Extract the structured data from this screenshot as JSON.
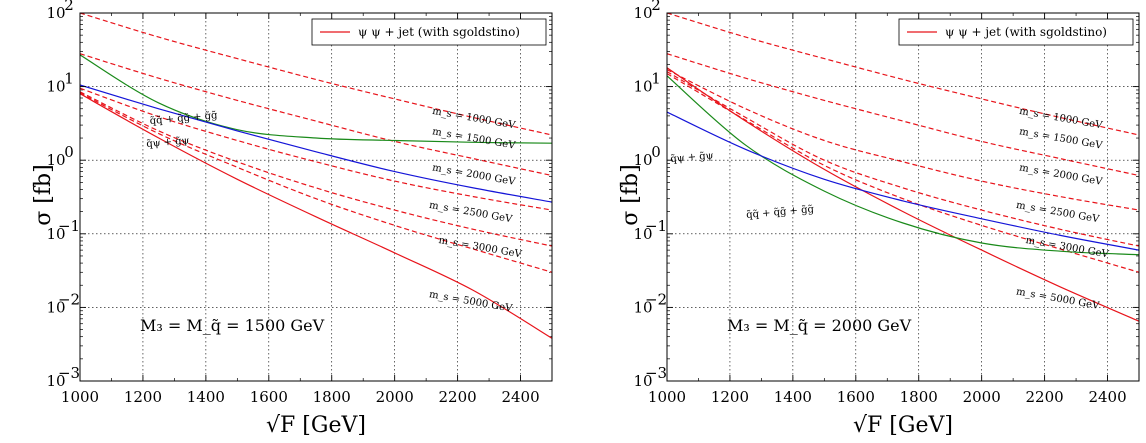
{
  "chart_data": [
    {
      "type": "line",
      "xlabel": "√F [GeV]",
      "ylabel": "σ [fb]",
      "xlim": [
        1000,
        2500
      ],
      "ylim": [
        0.001,
        100
      ],
      "yscale": "log",
      "x_ticks": [
        "1000",
        "1200",
        "1400",
        "1600",
        "1800",
        "2000",
        "2200",
        "2400"
      ],
      "y_ticks": [
        {
          "value": 0.001,
          "base": "10",
          "exp": "−3"
        },
        {
          "value": 0.01,
          "base": "10",
          "exp": "−2"
        },
        {
          "value": 0.1,
          "base": "10",
          "exp": "−1"
        },
        {
          "value": 1,
          "base": "10",
          "exp": "0"
        },
        {
          "value": 10,
          "base": "10",
          "exp": "1"
        },
        {
          "value": 100,
          "base": "10",
          "exp": "2"
        }
      ],
      "grid": true,
      "legend": {
        "placement": "top-right",
        "label": "ψ ψ + jet (with sgoldstino)"
      },
      "plot_label": "M₃ = M_q̃ = 1500 GeV",
      "x": [
        1000,
        1250,
        1500,
        1750,
        2000,
        2250,
        2500
      ],
      "series": [
        {
          "name": "m_s = 1000 GeV",
          "style": "dashed",
          "color": "#e8141b",
          "values": [
            100,
            47,
            24,
            12.5,
            6.8,
            3.8,
            2.2
          ],
          "label_at": [
            2250,
            3.4
          ],
          "label": "m_s = 1000 GeV"
        },
        {
          "name": "m_s = 1500 GeV",
          "style": "dashed",
          "color": "#e8141b",
          "values": [
            28,
            13,
            6.5,
            3.4,
            1.8,
            1.05,
            0.62
          ],
          "label_at": [
            2250,
            1.8
          ],
          "label": "m_s = 1500 GeV"
        },
        {
          "name": "m_s = 2000 GeV",
          "style": "dashed",
          "color": "#e8141b",
          "values": [
            9.5,
            3.9,
            1.85,
            0.95,
            0.52,
            0.32,
            0.21
          ],
          "label_at": [
            2250,
            0.58
          ],
          "label": "m_s = 2000 GeV"
        },
        {
          "name": "m_s = 2500 GeV",
          "style": "dashed",
          "color": "#e8141b",
          "values": [
            8.5,
            2.5,
            0.95,
            0.42,
            0.21,
            0.115,
            0.068
          ],
          "label_at": [
            2240,
            0.18
          ],
          "label": "m_s = 2500 GeV"
        },
        {
          "name": "m_s = 3000 GeV",
          "style": "dashed",
          "color": "#e8141b",
          "values": [
            8.2,
            2.3,
            0.8,
            0.3,
            0.13,
            0.062,
            0.03
          ],
          "label_at": [
            2270,
            0.06
          ],
          "label": "m_s = 3000 GeV"
        },
        {
          "name": "m_s = 5000 GeV",
          "style": "solid",
          "color": "#e8141b",
          "values": [
            8.0,
            2.0,
            0.55,
            0.17,
            0.055,
            0.017,
            0.0038
          ],
          "label_at": [
            2240,
            0.011
          ],
          "label": "m_s = 5000 GeV"
        },
        {
          "name": "q̃q̃ + q̃g̃ + g̃g̃",
          "style": "solid",
          "color": "#1a8a1a",
          "values": [
            27,
            6.0,
            2.6,
            2.0,
            1.85,
            1.75,
            1.7
          ],
          "label_at": [
            1330,
            3.4
          ],
          "label": "q̃q̃ + q̃g̃ + g̃g̃"
        },
        {
          "name": "q̃ψ + g̃ψ",
          "style": "solid",
          "color": "#1515d8",
          "values": [
            10.5,
            5.0,
            2.5,
            1.3,
            0.7,
            0.42,
            0.27
          ],
          "label_at": [
            1280,
            1.6
          ],
          "label": "q̃ψ + g̃ψ"
        }
      ]
    },
    {
      "type": "line",
      "xlabel": "√F [GeV]",
      "ylabel": "σ [fb]",
      "xlim": [
        1000,
        2500
      ],
      "ylim": [
        0.001,
        100
      ],
      "yscale": "log",
      "x_ticks": [
        "1000",
        "1200",
        "1400",
        "1600",
        "1800",
        "2000",
        "2200",
        "2400"
      ],
      "y_ticks": [
        {
          "value": 0.001,
          "base": "10",
          "exp": "−3"
        },
        {
          "value": 0.01,
          "base": "10",
          "exp": "−2"
        },
        {
          "value": 0.1,
          "base": "10",
          "exp": "−1"
        },
        {
          "value": 1,
          "base": "10",
          "exp": "0"
        },
        {
          "value": 10,
          "base": "10",
          "exp": "1"
        },
        {
          "value": 100,
          "base": "10",
          "exp": "2"
        }
      ],
      "grid": true,
      "legend": {
        "placement": "top-right",
        "label": "ψ ψ + jet (with sgoldstino)"
      },
      "plot_label": "M₃ = M_q̃ = 2000 GeV",
      "x": [
        1000,
        1250,
        1500,
        1750,
        2000,
        2250,
        2500
      ],
      "series": [
        {
          "name": "m_s = 1000 GeV",
          "style": "dashed",
          "color": "#e8141b",
          "values": [
            100,
            47,
            24,
            12.5,
            6.8,
            3.8,
            2.2
          ],
          "label_at": [
            2250,
            3.4
          ],
          "label": "m_s = 1000 GeV"
        },
        {
          "name": "m_s = 1500 GeV",
          "style": "dashed",
          "color": "#e8141b",
          "values": [
            28,
            13,
            6.5,
            3.4,
            1.8,
            1.05,
            0.62
          ],
          "label_at": [
            2250,
            1.8
          ],
          "label": "m_s = 1500 GeV"
        },
        {
          "name": "m_s = 2000 GeV",
          "style": "dashed",
          "color": "#e8141b",
          "values": [
            17,
            5.0,
            1.85,
            0.95,
            0.52,
            0.32,
            0.21
          ],
          "label_at": [
            2250,
            0.58
          ],
          "label": "m_s = 2000 GeV"
        },
        {
          "name": "m_s = 2500 GeV",
          "style": "dashed",
          "color": "#e8141b",
          "values": [
            16,
            3.8,
            1.0,
            0.42,
            0.21,
            0.115,
            0.068
          ],
          "label_at": [
            2240,
            0.18
          ],
          "label": "m_s = 2500 GeV"
        },
        {
          "name": "m_s = 3000 GeV",
          "style": "dashed",
          "color": "#e8141b",
          "values": [
            15,
            3.5,
            0.85,
            0.3,
            0.13,
            0.062,
            0.03
          ],
          "label_at": [
            2270,
            0.06
          ],
          "label": "m_s = 3000 GeV"
        },
        {
          "name": "m_s = 5000 GeV",
          "style": "solid",
          "color": "#e8141b",
          "values": [
            18,
            3.4,
            0.75,
            0.2,
            0.06,
            0.019,
            0.0065
          ],
          "label_at": [
            2240,
            0.012
          ],
          "label": "m_s = 5000 GeV"
        },
        {
          "name": "q̃q̃ + q̃g̃ + g̃g̃",
          "style": "solid",
          "color": "#1a8a1a",
          "values": [
            14,
            1.6,
            0.38,
            0.14,
            0.075,
            0.058,
            0.052
          ],
          "label_at": [
            1360,
            0.18
          ],
          "label": "q̃q̃ + q̃g̃ + g̃g̃"
        },
        {
          "name": "q̃ψ + g̃ψ",
          "style": "solid",
          "color": "#1515d8",
          "values": [
            4.5,
            1.4,
            0.55,
            0.28,
            0.16,
            0.095,
            0.06
          ],
          "label_at": [
            1080,
            1.0
          ],
          "label": "q̃ψ + g̃ψ"
        }
      ]
    }
  ]
}
